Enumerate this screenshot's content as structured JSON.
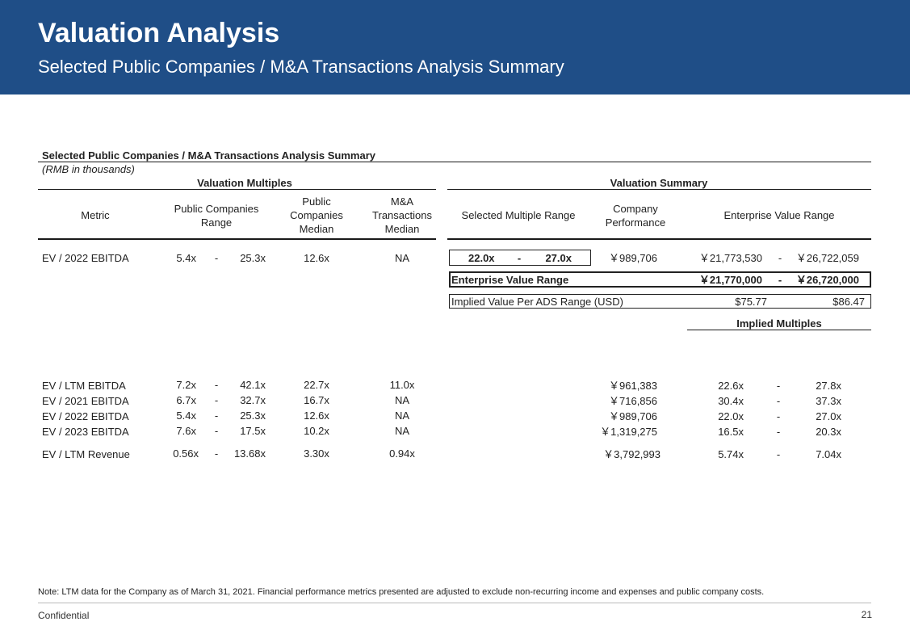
{
  "header": {
    "title": "Valuation Analysis",
    "subtitle": "Selected Public Companies / M&A Transactions Analysis Summary"
  },
  "table": {
    "title": "Selected Public Companies / M&A Transactions Analysis Summary",
    "units": "(RMB in thousands)",
    "group_valuation_multiples": "Valuation Multiples",
    "group_valuation_summary": "Valuation Summary",
    "columns": {
      "metric": "Metric",
      "public_range": "Public Companies Range",
      "public_median": "Public Companies Median",
      "ma_median": "M&A Transactions Median",
      "selected_range": "Selected Multiple Range",
      "performance": "Company Performance",
      "ev_range": "Enterprise Value Range"
    },
    "main_row": {
      "metric": "EV / 2022 EBITDA",
      "range_low": "5.4x",
      "dash": "-",
      "range_high": "25.3x",
      "median": "12.6x",
      "ma_median": "NA",
      "sel_low": "22.0x",
      "sel_high": "27.0x",
      "performance": "￥989,706",
      "ev_low": "￥21,773,530",
      "ev_high": "￥26,722,059"
    },
    "ev_range_row": {
      "label": "Enterprise Value Range",
      "low": "￥21,770,000",
      "dash": "-",
      "high": "￥26,720,000"
    },
    "ads_row": {
      "label": "Implied Value Per ADS Range (USD)",
      "low": "$75.77",
      "high": "$86.47"
    },
    "implied_multiples_label": "Implied Multiples",
    "rows": [
      {
        "metric": "EV / LTM EBITDA",
        "low": "7.2x",
        "dash": "-",
        "high": "42.1x",
        "median": "22.7x",
        "ma": "11.0x",
        "perf": "￥961,383",
        "im_low": "22.6x",
        "im_dash": "-",
        "im_high": "27.8x"
      },
      {
        "metric": "EV / 2021 EBITDA",
        "low": "6.7x",
        "dash": "-",
        "high": "32.7x",
        "median": "16.7x",
        "ma": "NA",
        "perf": "￥716,856",
        "im_low": "30.4x",
        "im_dash": "-",
        "im_high": "37.3x"
      },
      {
        "metric": "EV / 2022 EBITDA",
        "low": "5.4x",
        "dash": "-",
        "high": "25.3x",
        "median": "12.6x",
        "ma": "NA",
        "perf": "￥989,706",
        "im_low": "22.0x",
        "im_dash": "-",
        "im_high": "27.0x"
      },
      {
        "metric": "EV / 2023 EBITDA",
        "low": "7.6x",
        "dash": "-",
        "high": "17.5x",
        "median": "10.2x",
        "ma": "NA",
        "perf": "￥1,319,275",
        "im_low": "16.5x",
        "im_dash": "-",
        "im_high": "20.3x"
      },
      {
        "metric": "EV / LTM Revenue",
        "low": "0.56x",
        "dash": "-",
        "high": "13.68x",
        "median": "3.30x",
        "ma": "0.94x",
        "perf": "￥3,792,993",
        "im_low": "5.74x",
        "im_dash": "-",
        "im_high": "7.04x"
      }
    ]
  },
  "footer": {
    "note": "Note: LTM data for the Company as of March 31, 2021. Financial performance metrics presented are adjusted to exclude non-recurring income and expenses and public company costs.",
    "confidential": "Confidential",
    "page_number": "21"
  }
}
